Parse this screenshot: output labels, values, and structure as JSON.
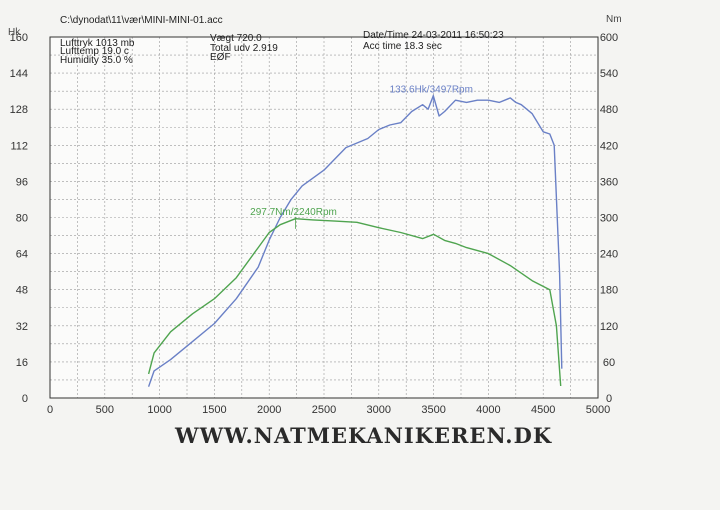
{
  "header": {
    "file_path": "C:\\dynodat\\11\\vær\\MINI-MINI-01.acc",
    "lufttryk": "Lufttryk  1013 mb",
    "lufttemp": "Lufttemp  19.0 c",
    "humidity": "Humidity  35.0 %",
    "vaegt": "Vægt     720.0",
    "total_udv": "Total udv 2.919",
    "eof": "EØF",
    "datetime": "Date/Time  24-03-2011 16:50:23",
    "acc_time": "Acc time  18.3 sec"
  },
  "watermark": "WWW.NATMEKANIKEREN.DK",
  "chart_data": {
    "type": "line",
    "left_axis_label": "Hk",
    "right_axis_label": "Nm",
    "x_ticks": [
      "0",
      "500",
      "1000",
      "1500",
      "2000",
      "2500",
      "3000",
      "3500",
      "4000",
      "4500",
      "5000"
    ],
    "y_left_ticks": [
      "0",
      "16",
      "32",
      "48",
      "64",
      "80",
      "96",
      "112",
      "128",
      "144",
      "160"
    ],
    "y_right_ticks": [
      "0",
      "60",
      "120",
      "180",
      "240",
      "300",
      "360",
      "420",
      "480",
      "540",
      "600"
    ],
    "xlim": [
      0,
      5000
    ],
    "ylim_left": [
      0,
      160
    ],
    "ylim_right": [
      0,
      600
    ],
    "grid": true,
    "series": [
      {
        "name": "Hk",
        "axis": "left",
        "color": "#6a80c6",
        "x": [
          900,
          950,
          1100,
          1300,
          1500,
          1700,
          1900,
          2000,
          2100,
          2200,
          2300,
          2500,
          2700,
          2900,
          3000,
          3100,
          3200,
          3300,
          3400,
          3450,
          3497,
          3550,
          3600,
          3700,
          3800,
          3900,
          4000,
          4100,
          4200,
          4250,
          4300,
          4400,
          4500,
          4560,
          4600,
          4650,
          4670
        ],
        "y": [
          5,
          12,
          17,
          25,
          33,
          44,
          58,
          70,
          80,
          88,
          94,
          101,
          111,
          115,
          119,
          121,
          122,
          127,
          130,
          128,
          134,
          125,
          127,
          132,
          131,
          132,
          132,
          131,
          133,
          131,
          130,
          126,
          118,
          117,
          112,
          55,
          13
        ]
      },
      {
        "name": "Nm",
        "axis": "right",
        "color": "#4fa44f",
        "x": [
          900,
          950,
          1100,
          1300,
          1500,
          1700,
          1900,
          2000,
          2100,
          2240,
          2400,
          2600,
          2800,
          3000,
          3200,
          3400,
          3500,
          3600,
          3700,
          3800,
          4000,
          4200,
          4400,
          4560,
          4620,
          4660
        ],
        "y": [
          40,
          75,
          110,
          140,
          165,
          200,
          250,
          275,
          288,
          298,
          296,
          294,
          292,
          283,
          275,
          265,
          272,
          262,
          257,
          250,
          240,
          220,
          195,
          180,
          120,
          20
        ]
      }
    ],
    "annotations": [
      {
        "text": "133.6Hk/3497Rpm",
        "series": "Hk",
        "x": 3497,
        "y": 133.6
      },
      {
        "text": "297.7Nm/2240Rpm",
        "series": "Nm",
        "x": 2240,
        "y": 297.7
      }
    ]
  }
}
